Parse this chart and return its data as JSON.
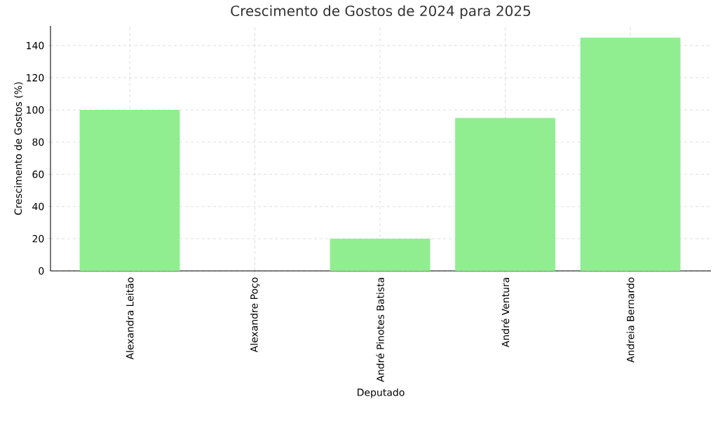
{
  "chart_data": {
    "type": "bar",
    "title": "Crescimento de Gostos de 2024 para 2025",
    "xlabel": "Deputado",
    "ylabel": "Crescimento de Gostos (%)",
    "categories": [
      "Alexandra Leitão",
      "Alexandre Poço",
      "André Pinotes Batista",
      "André Ventura",
      "Andreia Bernardo"
    ],
    "values": [
      100,
      0,
      20,
      95,
      145
    ],
    "color": "#90ee90",
    "ylim": [
      0,
      152.2
    ],
    "yticks": [
      0,
      20,
      40,
      60,
      80,
      100,
      120,
      140
    ],
    "grid": true
  }
}
